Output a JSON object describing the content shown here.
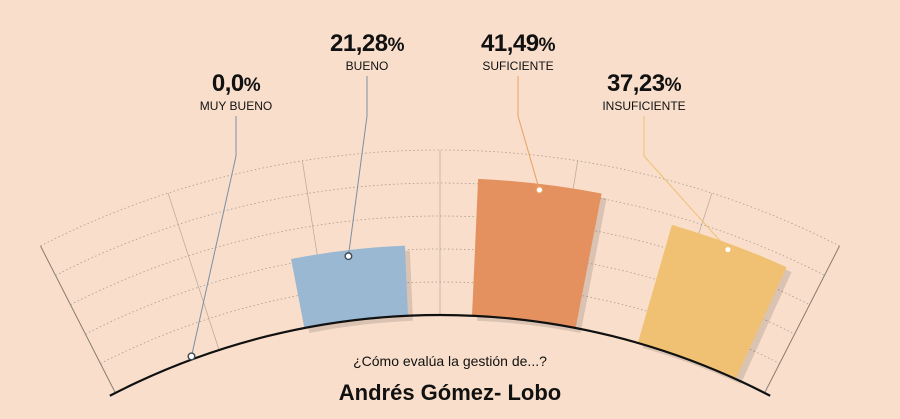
{
  "chart_data": {
    "type": "bar",
    "categories": [
      "MUY BUENO",
      "BUENO",
      "SUFICIENTE",
      "INSUFICIENTE"
    ],
    "values": [
      0.0,
      21.28,
      41.49,
      37.23
    ],
    "value_labels": [
      "0,0",
      "21,28",
      "41,49",
      "37,23"
    ],
    "unit": "%",
    "colors": [
      "#9bb8d3",
      "#9bb8d3",
      "#e4915f",
      "#f0c173"
    ],
    "ylim": [
      0,
      50
    ],
    "grid": true,
    "layout": "radial-fan"
  },
  "question": "¿Cómo evalúa la gestión de...?",
  "person": "Andrés Gómez- Lobo"
}
